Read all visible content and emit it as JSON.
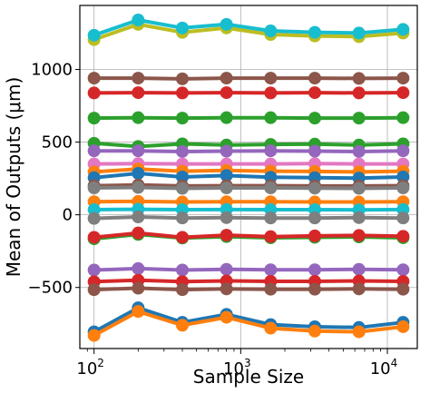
{
  "chart_data": {
    "type": "line",
    "title": "",
    "xlabel": "Sample Size",
    "ylabel": "Mean of Outputs (μm)",
    "xscale": "log",
    "x": [
      100,
      200,
      400,
      800,
      1600,
      3200,
      6400,
      12800
    ],
    "xlim": [
      80,
      16000
    ],
    "ylim": [
      -920,
      1440
    ],
    "grid": true,
    "legend": "none",
    "x_ticks": [
      {
        "value": 100,
        "base": "10",
        "exp": "2"
      },
      {
        "value": 1000,
        "base": "10",
        "exp": "3"
      },
      {
        "value": 10000,
        "base": "10",
        "exp": "4"
      }
    ],
    "y_ticks": [
      {
        "value": -500,
        "label": "−500"
      },
      {
        "value": 0,
        "label": "0"
      },
      {
        "value": 500,
        "label": "500"
      },
      {
        "value": 1000,
        "label": "1000"
      }
    ],
    "series": [
      {
        "color": "#bcbd22",
        "values": [
          1205,
          1310,
          1255,
          1285,
          1240,
          1230,
          1225,
          1250
        ]
      },
      {
        "color": "#17becf",
        "values": [
          1235,
          1340,
          1285,
          1310,
          1265,
          1255,
          1250,
          1275
        ]
      },
      {
        "color": "#8c564b",
        "values": [
          940,
          940,
          935,
          940,
          940,
          940,
          938,
          940
        ]
      },
      {
        "color": "#d62728",
        "values": [
          838,
          840,
          838,
          840,
          838,
          840,
          838,
          840
        ]
      },
      {
        "color": "#2ca02c",
        "values": [
          665,
          668,
          665,
          668,
          668,
          665,
          665,
          668
        ]
      },
      {
        "color": "#2ca02c",
        "values": [
          492,
          470,
          488,
          480,
          484,
          486,
          480,
          488
        ]
      },
      {
        "color": "#9467bd",
        "values": [
          440,
          440,
          435,
          438,
          440,
          438,
          435,
          440
        ]
      },
      {
        "color": "#e377c2",
        "values": [
          350,
          352,
          350,
          350,
          350,
          352,
          350,
          350
        ]
      },
      {
        "color": "#ff7f0e",
        "values": [
          295,
          315,
          300,
          305,
          300,
          298,
          295,
          300
        ]
      },
      {
        "color": "#1f77b4",
        "values": [
          255,
          285,
          260,
          270,
          258,
          255,
          252,
          260
        ]
      },
      {
        "color": "#8c564b",
        "values": [
          200,
          205,
          198,
          200,
          200,
          198,
          198,
          200
        ]
      },
      {
        "color": "#7f7f7f",
        "values": [
          185,
          188,
          182,
          185,
          185,
          183,
          182,
          185
        ]
      },
      {
        "color": "#ff7f0e",
        "values": [
          90,
          92,
          88,
          90,
          90,
          88,
          88,
          90
        ]
      },
      {
        "color": "#17becf",
        "values": [
          35,
          38,
          35,
          36,
          35,
          35,
          34,
          36
        ]
      },
      {
        "color": "#7f7f7f",
        "values": [
          -25,
          -15,
          -22,
          -20,
          -22,
          -22,
          -20,
          -22
        ]
      },
      {
        "color": "#2ca02c",
        "values": [
          -165,
          -135,
          -160,
          -150,
          -158,
          -155,
          -152,
          -158
        ]
      },
      {
        "color": "#d62728",
        "values": [
          -155,
          -125,
          -155,
          -140,
          -150,
          -145,
          -142,
          -148
        ]
      },
      {
        "color": "#9467bd",
        "values": [
          -380,
          -370,
          -380,
          -375,
          -378,
          -378,
          -375,
          -378
        ]
      },
      {
        "color": "#d62728",
        "values": [
          -460,
          -450,
          -460,
          -455,
          -458,
          -458,
          -455,
          -458
        ]
      },
      {
        "color": "#8c564b",
        "values": [
          -515,
          -505,
          -515,
          -510,
          -512,
          -512,
          -510,
          -512
        ]
      },
      {
        "color": "#1f77b4",
        "values": [
          -805,
          -640,
          -740,
          -685,
          -755,
          -770,
          -775,
          -740
        ]
      },
      {
        "color": "#ff7f0e",
        "values": [
          -830,
          -665,
          -760,
          -705,
          -780,
          -800,
          -805,
          -770
        ]
      }
    ]
  }
}
